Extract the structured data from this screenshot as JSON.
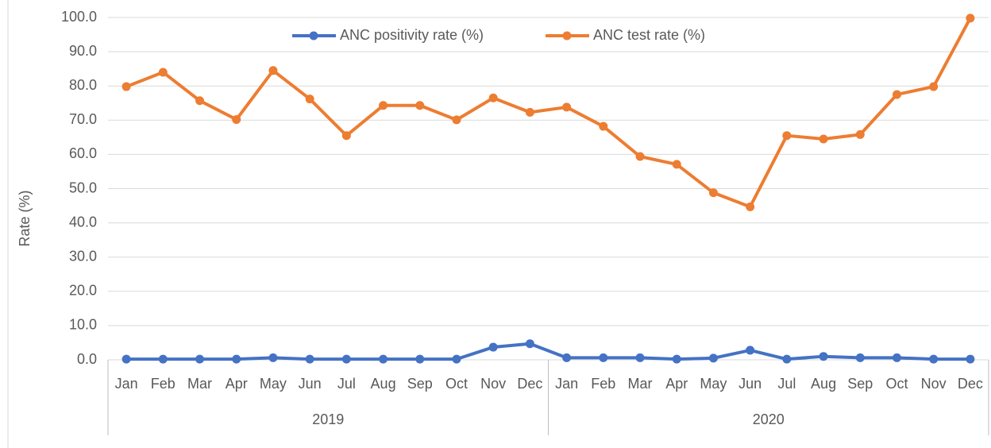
{
  "chart_data": {
    "type": "line",
    "y_label": "Rate (%)",
    "categories": [
      "Jan",
      "Feb",
      "Mar",
      "Apr",
      "May",
      "Jun",
      "Jul",
      "Aug",
      "Sep",
      "Oct",
      "Nov",
      "Dec",
      "Jan",
      "Feb",
      "Mar",
      "Apr",
      "May",
      "Jun",
      "Jul",
      "Aug",
      "Sep",
      "Oct",
      "Nov",
      "Dec"
    ],
    "x_groups": [
      "2019",
      "2020"
    ],
    "series": [
      {
        "name": "ANC positivity rate (%)",
        "color": "#4472c4",
        "values": [
          0.2,
          0.2,
          0.2,
          0.2,
          0.6,
          0.2,
          0.2,
          0.2,
          0.2,
          0.2,
          3.7,
          4.7,
          0.6,
          0.6,
          0.6,
          0.2,
          0.5,
          2.8,
          0.2,
          1.0,
          0.6,
          0.6,
          0.2,
          0.2
        ]
      },
      {
        "name": "ANC test rate (%)",
        "color": "#ed7d31",
        "values": [
          79.8,
          84.0,
          75.7,
          70.2,
          84.5,
          76.2,
          65.5,
          74.3,
          74.3,
          70.1,
          76.5,
          72.3,
          73.8,
          68.2,
          59.4,
          57.1,
          48.8,
          44.7,
          65.5,
          64.5,
          65.8,
          77.5,
          79.8,
          99.8
        ]
      }
    ],
    "ylim": [
      0,
      100
    ],
    "yticks": [
      {
        "value": 0,
        "label": "0.0"
      },
      {
        "value": 10,
        "label": "10.0"
      },
      {
        "value": 20,
        "label": "20.0"
      },
      {
        "value": 30,
        "label": "30.0"
      },
      {
        "value": 40,
        "label": "40.0"
      },
      {
        "value": 50,
        "label": "50.0"
      },
      {
        "value": 60,
        "label": "60.0"
      },
      {
        "value": 70,
        "label": "70.0"
      },
      {
        "value": 80,
        "label": "80.0"
      },
      {
        "value": 90,
        "label": "90.0"
      },
      {
        "value": 100,
        "label": "100.0"
      }
    ],
    "grid": true,
    "legend": "top"
  }
}
